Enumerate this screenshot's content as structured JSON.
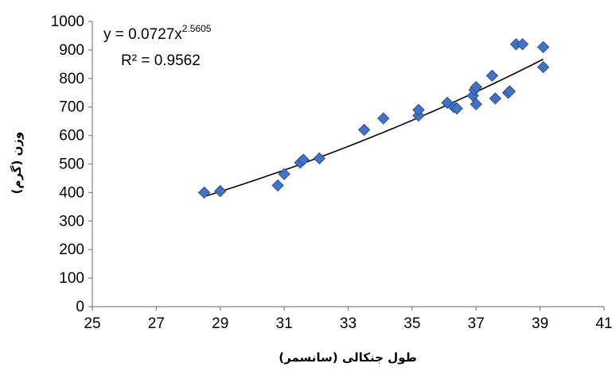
{
  "chart_data": {
    "type": "scatter",
    "xlabel": "طول جنکالی (سانسمر)",
    "ylabel": "وزن (گرم)",
    "xlim": [
      25,
      41
    ],
    "ylim": [
      0,
      1000
    ],
    "xticks": [
      "25",
      "27",
      "29",
      "31",
      "33",
      "35",
      "37",
      "39",
      "41"
    ],
    "yticks": [
      "0",
      "100",
      "200",
      "300",
      "400",
      "500",
      "600",
      "700",
      "800",
      "900",
      "1000"
    ],
    "grid": false,
    "marker_color": "#4472C4",
    "marker_edge": "#2F4F8F",
    "trendline": {
      "type": "power",
      "a": 0.0727,
      "b": 2.5605,
      "x_range": [
        28.5,
        39.1
      ],
      "equation_base": "y = 0.0727x",
      "equation_exp": "2.5605",
      "r2_label": "R² = 0.9562"
    },
    "points": [
      {
        "x": 28.5,
        "y": 400
      },
      {
        "x": 29.0,
        "y": 405
      },
      {
        "x": 30.8,
        "y": 425
      },
      {
        "x": 31.0,
        "y": 465
      },
      {
        "x": 31.5,
        "y": 505
      },
      {
        "x": 31.6,
        "y": 515
      },
      {
        "x": 32.1,
        "y": 520
      },
      {
        "x": 33.5,
        "y": 620
      },
      {
        "x": 34.1,
        "y": 660
      },
      {
        "x": 35.2,
        "y": 670
      },
      {
        "x": 35.2,
        "y": 690
      },
      {
        "x": 36.1,
        "y": 715
      },
      {
        "x": 36.3,
        "y": 700
      },
      {
        "x": 36.4,
        "y": 695
      },
      {
        "x": 36.9,
        "y": 740
      },
      {
        "x": 36.95,
        "y": 760
      },
      {
        "x": 37.0,
        "y": 770
      },
      {
        "x": 37.0,
        "y": 710
      },
      {
        "x": 37.5,
        "y": 810
      },
      {
        "x": 37.6,
        "y": 730
      },
      {
        "x": 38.0,
        "y": 750
      },
      {
        "x": 38.05,
        "y": 755
      },
      {
        "x": 38.25,
        "y": 920
      },
      {
        "x": 38.45,
        "y": 920
      },
      {
        "x": 39.1,
        "y": 910
      },
      {
        "x": 39.1,
        "y": 840
      }
    ]
  }
}
